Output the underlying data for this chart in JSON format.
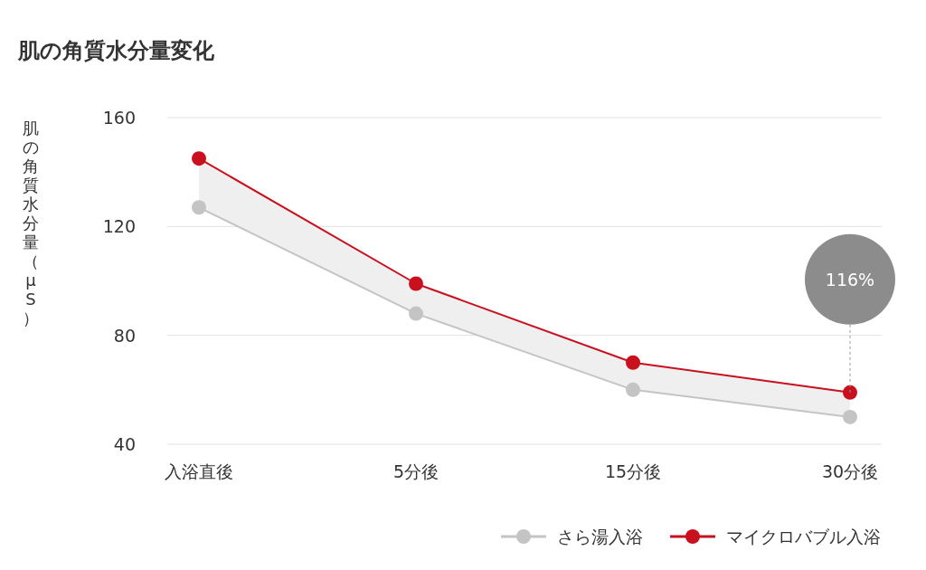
{
  "chart_data": {
    "type": "line",
    "title": "肌の角質水分量変化",
    "ylabel": "肌の角質水分量（μS）",
    "categories": [
      "入浴直後",
      "5分後",
      "15分後",
      "30分後"
    ],
    "series": [
      {
        "name": "さら湯入浴",
        "color": "#c4c4c4",
        "values": [
          127,
          88,
          60,
          50
        ]
      },
      {
        "name": "マイクロバブル入浴",
        "color": "#c8101e",
        "values": [
          145,
          99,
          70,
          59
        ],
        "lower": [
          127,
          88,
          60,
          50
        ],
        "upper": [
          145,
          99,
          70,
          59
        ]
      }
    ],
    "ylim": [
      40,
      160
    ],
    "yticks": [
      40,
      80,
      120,
      160
    ],
    "grid": "y",
    "legend": "bottom right",
    "marker": "circle",
    "line_style": "solid",
    "annotations": [
      "116%"
    ]
  }
}
